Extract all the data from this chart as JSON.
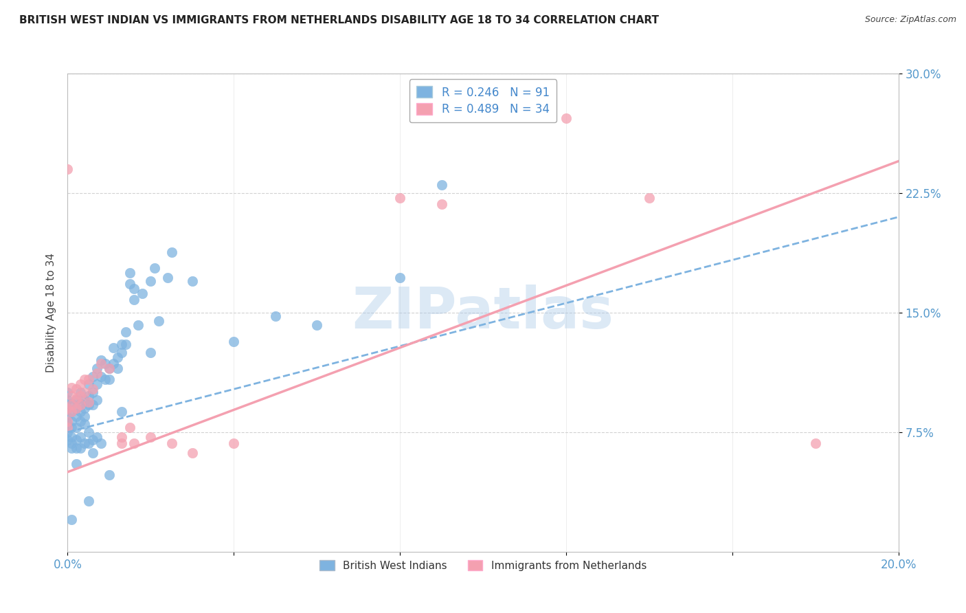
{
  "title": "BRITISH WEST INDIAN VS IMMIGRANTS FROM NETHERLANDS DISABILITY AGE 18 TO 34 CORRELATION CHART",
  "source": "Source: ZipAtlas.com",
  "ylabel": "Disability Age 18 to 34",
  "xlim": [
    0.0,
    0.2
  ],
  "ylim": [
    0.0,
    0.3
  ],
  "xticks": [
    0.0,
    0.04,
    0.08,
    0.12,
    0.16,
    0.2
  ],
  "xtick_labels": [
    "0.0%",
    "",
    "",
    "",
    "",
    "20.0%"
  ],
  "yticks_right": [
    0.075,
    0.15,
    0.225,
    0.3
  ],
  "ytick_labels_right": [
    "7.5%",
    "15.0%",
    "22.5%",
    "30.0%"
  ],
  "blue_color": "#7EB3E0",
  "pink_color": "#F4A0B0",
  "blue_R": 0.246,
  "blue_N": 91,
  "pink_R": 0.489,
  "pink_N": 34,
  "watermark": "ZIPatlas",
  "watermark_color": "#A8C8E8",
  "blue_line": [
    0.0,
    0.075,
    0.2,
    0.21
  ],
  "pink_line": [
    0.0,
    0.05,
    0.2,
    0.245
  ],
  "blue_scatter": [
    [
      0.0,
      0.08
    ],
    [
      0.0,
      0.09
    ],
    [
      0.0,
      0.095
    ],
    [
      0.0,
      0.1
    ],
    [
      0.0,
      0.085
    ],
    [
      0.0,
      0.075
    ],
    [
      0.0,
      0.07
    ],
    [
      0.001,
      0.088
    ],
    [
      0.001,
      0.093
    ],
    [
      0.001,
      0.082
    ],
    [
      0.001,
      0.078
    ],
    [
      0.001,
      0.072
    ],
    [
      0.001,
      0.068
    ],
    [
      0.001,
      0.065
    ],
    [
      0.002,
      0.09
    ],
    [
      0.002,
      0.095
    ],
    [
      0.002,
      0.085
    ],
    [
      0.002,
      0.078
    ],
    [
      0.002,
      0.07
    ],
    [
      0.002,
      0.065
    ],
    [
      0.003,
      0.1
    ],
    [
      0.003,
      0.093
    ],
    [
      0.003,
      0.088
    ],
    [
      0.003,
      0.082
    ],
    [
      0.003,
      0.072
    ],
    [
      0.003,
      0.065
    ],
    [
      0.004,
      0.095
    ],
    [
      0.004,
      0.09
    ],
    [
      0.004,
      0.085
    ],
    [
      0.004,
      0.08
    ],
    [
      0.004,
      0.068
    ],
    [
      0.005,
      0.105
    ],
    [
      0.005,
      0.098
    ],
    [
      0.005,
      0.092
    ],
    [
      0.005,
      0.075
    ],
    [
      0.005,
      0.068
    ],
    [
      0.006,
      0.11
    ],
    [
      0.006,
      0.1
    ],
    [
      0.006,
      0.092
    ],
    [
      0.006,
      0.07
    ],
    [
      0.006,
      0.062
    ],
    [
      0.007,
      0.115
    ],
    [
      0.007,
      0.105
    ],
    [
      0.007,
      0.095
    ],
    [
      0.007,
      0.072
    ],
    [
      0.008,
      0.12
    ],
    [
      0.008,
      0.11
    ],
    [
      0.008,
      0.068
    ],
    [
      0.009,
      0.118
    ],
    [
      0.009,
      0.108
    ],
    [
      0.01,
      0.115
    ],
    [
      0.01,
      0.108
    ],
    [
      0.011,
      0.118
    ],
    [
      0.011,
      0.128
    ],
    [
      0.012,
      0.122
    ],
    [
      0.012,
      0.115
    ],
    [
      0.013,
      0.125
    ],
    [
      0.013,
      0.13
    ],
    [
      0.014,
      0.13
    ],
    [
      0.014,
      0.138
    ],
    [
      0.015,
      0.168
    ],
    [
      0.015,
      0.175
    ],
    [
      0.016,
      0.158
    ],
    [
      0.016,
      0.165
    ],
    [
      0.017,
      0.142
    ],
    [
      0.018,
      0.162
    ],
    [
      0.02,
      0.17
    ],
    [
      0.02,
      0.125
    ],
    [
      0.021,
      0.178
    ],
    [
      0.022,
      0.145
    ],
    [
      0.024,
      0.172
    ],
    [
      0.025,
      0.188
    ],
    [
      0.03,
      0.17
    ],
    [
      0.04,
      0.132
    ],
    [
      0.05,
      0.148
    ],
    [
      0.06,
      0.142
    ],
    [
      0.08,
      0.172
    ],
    [
      0.09,
      0.23
    ],
    [
      0.001,
      0.02
    ],
    [
      0.005,
      0.032
    ],
    [
      0.013,
      0.088
    ],
    [
      0.002,
      0.055
    ],
    [
      0.01,
      0.048
    ]
  ],
  "pink_scatter": [
    [
      0.0,
      0.09
    ],
    [
      0.0,
      0.082
    ],
    [
      0.0,
      0.078
    ],
    [
      0.001,
      0.088
    ],
    [
      0.001,
      0.092
    ],
    [
      0.001,
      0.098
    ],
    [
      0.001,
      0.103
    ],
    [
      0.002,
      0.09
    ],
    [
      0.002,
      0.096
    ],
    [
      0.002,
      0.102
    ],
    [
      0.003,
      0.098
    ],
    [
      0.003,
      0.092
    ],
    [
      0.003,
      0.105
    ],
    [
      0.004,
      0.1
    ],
    [
      0.004,
      0.108
    ],
    [
      0.005,
      0.108
    ],
    [
      0.005,
      0.094
    ],
    [
      0.006,
      0.102
    ],
    [
      0.007,
      0.112
    ],
    [
      0.008,
      0.118
    ],
    [
      0.01,
      0.115
    ],
    [
      0.013,
      0.068
    ],
    [
      0.013,
      0.072
    ],
    [
      0.015,
      0.078
    ],
    [
      0.016,
      0.068
    ],
    [
      0.02,
      0.072
    ],
    [
      0.025,
      0.068
    ],
    [
      0.0,
      0.24
    ],
    [
      0.03,
      0.062
    ],
    [
      0.04,
      0.068
    ],
    [
      0.08,
      0.222
    ],
    [
      0.09,
      0.218
    ],
    [
      0.12,
      0.272
    ],
    [
      0.14,
      0.222
    ],
    [
      0.18,
      0.068
    ]
  ]
}
